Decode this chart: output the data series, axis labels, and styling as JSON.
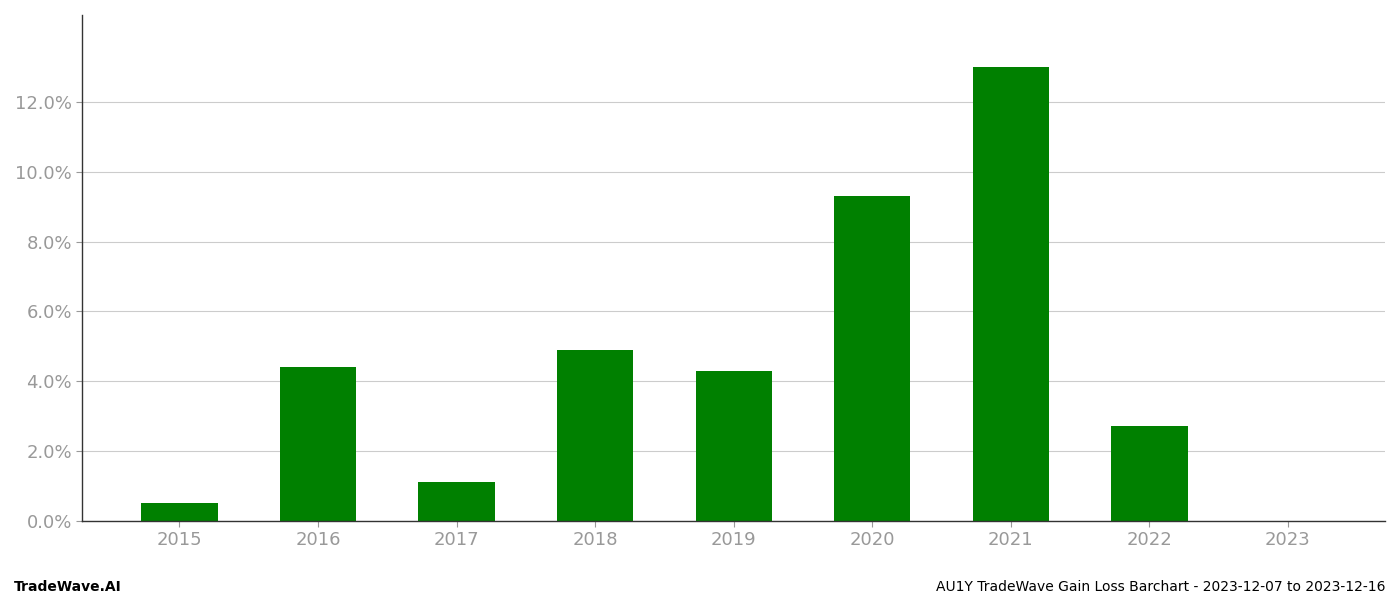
{
  "categories": [
    "2015",
    "2016",
    "2017",
    "2018",
    "2019",
    "2020",
    "2021",
    "2022",
    "2023"
  ],
  "values": [
    0.005,
    0.044,
    0.011,
    0.049,
    0.043,
    0.093,
    0.13,
    0.027,
    0.0
  ],
  "bar_color": "#008000",
  "background_color": "#ffffff",
  "grid_color": "#cccccc",
  "ylim": [
    0,
    0.145
  ],
  "yticks": [
    0.0,
    0.02,
    0.04,
    0.06,
    0.08,
    0.1,
    0.12
  ],
  "footer_left": "TradeWave.AI",
  "footer_right": "AU1Y TradeWave Gain Loss Barchart - 2023-12-07 to 2023-12-16",
  "footer_fontsize": 10,
  "tick_label_fontsize": 13,
  "tick_color": "#999999",
  "axis_color": "#333333",
  "footer_color": "#000000",
  "bar_width": 0.55
}
